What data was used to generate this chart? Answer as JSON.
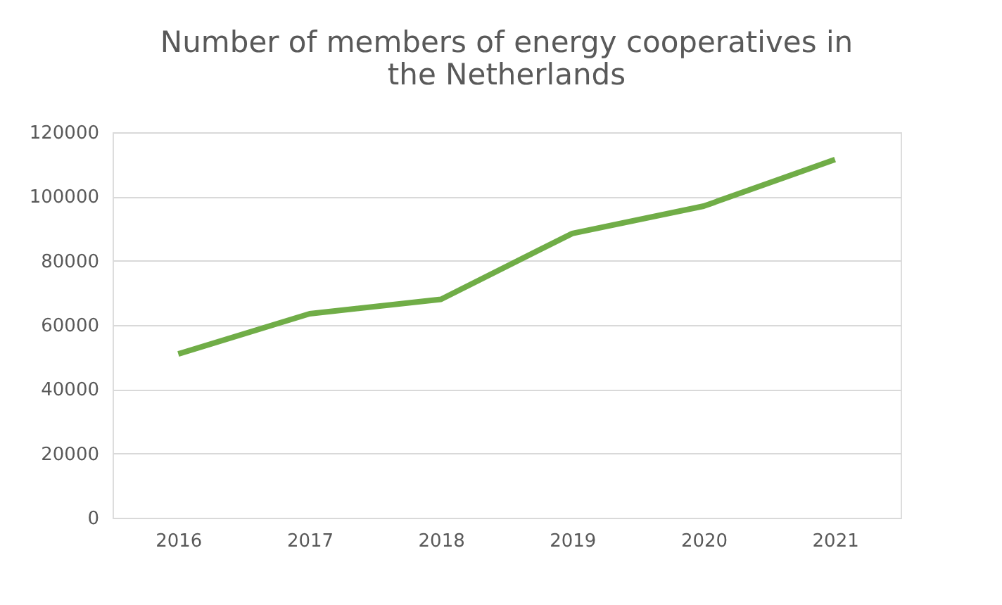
{
  "chart_data": {
    "type": "line",
    "title": "Number of members of energy cooperatives in the Netherlands",
    "categories": [
      "2016",
      "2017",
      "2018",
      "2019",
      "2020",
      "2021"
    ],
    "series": [
      {
        "color": "#70ad47",
        "values": [
          51000,
          63500,
          68000,
          88500,
          97000,
          111500
        ]
      }
    ],
    "ylim": [
      0,
      120000
    ],
    "yticks": [
      0,
      20000,
      40000,
      60000,
      80000,
      100000,
      120000
    ],
    "grid": "y",
    "marker": "none",
    "line_style": "solid",
    "legend": false
  }
}
